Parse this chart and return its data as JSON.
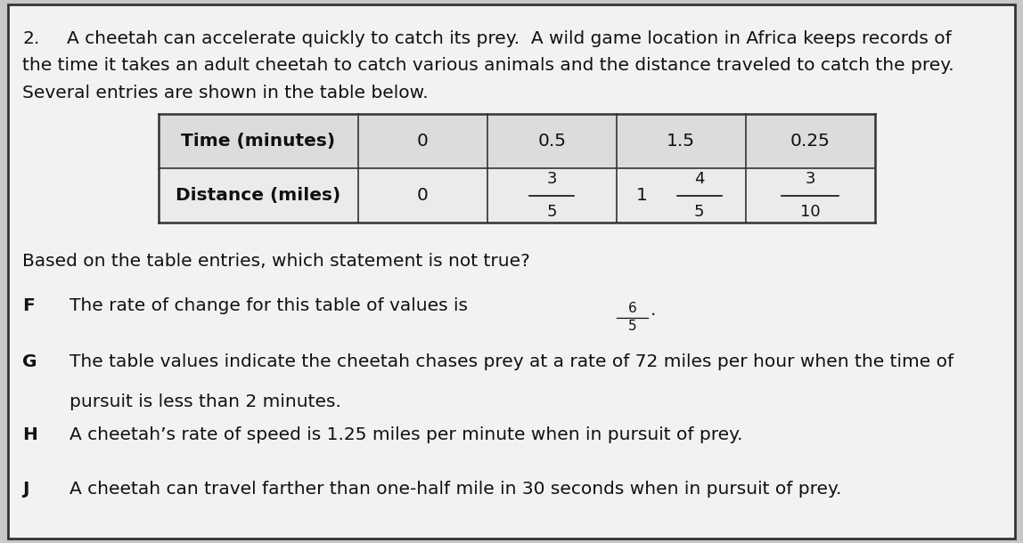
{
  "background_color": "#c8c8c8",
  "inner_bg_color": "#f2f2f0",
  "border_color": "#333333",
  "question_number": "2.",
  "intro_text_line1": "A cheetah can accelerate quickly to catch its prey.  A wild game location in Africa keeps records of",
  "intro_text_line2": "the time it takes an adult cheetah to catch various animals and the distance traveled to catch the prey.",
  "intro_text_line3": "Several entries are shown in the table below.",
  "question_text": "Based on the table entries, which statement is not true?",
  "option_F_main": "The rate of change for this table of values is ",
  "option_F_fraction_num": "6",
  "option_F_fraction_den": "5",
  "option_G_line1": "The table values indicate the cheetah chases prey at a rate of 72 miles per hour when the time of",
  "option_G_line2": "pursuit is less than 2 minutes.",
  "option_H": "A cheetah’s rate of speed is 1.25 miles per minute when in pursuit of prey.",
  "option_J": "A cheetah can travel farther than one-half mile in 30 seconds when in pursuit of prey.",
  "font_size_body": 14.5,
  "text_color": "#111111",
  "table_border": "#333333",
  "table_header_bg": "#dcdcdc",
  "table_data_bg": "#ebebeb"
}
